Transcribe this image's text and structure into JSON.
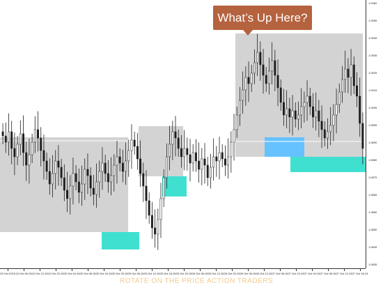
{
  "callout": {
    "text": "What’s Up Here?"
  },
  "watermark": {
    "text": "ROTATE ON THE PRICE ACTION TRADERS"
  },
  "colors": {
    "range_box": "#d3d3d3",
    "demand_zone": "#40e0d0",
    "blue_zone": "#66c2ff",
    "callout_bg": "#b5623f",
    "candle": "#1d1d1d",
    "callout_text": "#ffffff"
  },
  "price_axis": {
    "ticks": [
      "1.0960",
      "1.0955",
      "1.0945",
      "1.0935",
      "1.0925",
      "1.0915",
      "1.0905",
      "1.0895",
      "1.0890",
      "1.0880",
      "1.0875",
      "1.0865",
      "1.0860",
      "1.0850",
      "1.0845",
      "1.0835"
    ]
  },
  "time_axis": {
    "ticks": [
      "23 Oct 2015",
      "24 Oct 06:15",
      "24 Oct 12:15",
      "24 Oct 20:15",
      "25 Oct 04:15",
      "25 Oct 08:15",
      "25 Oct 16:15",
      "25 Oct 20:15",
      "25 Oct 06:15",
      "25 Oct 12:15",
      "25 Oct 16:15",
      "25 Oct 20:15",
      "26 Oct 06:15",
      "26 Oct 12:15",
      "26 Oct 20:15",
      "26 Oct 06:15",
      "26 Oct 12:15",
      "27 Oct 06:15",
      "27 Oct 10:15",
      "27 Oct 04:15",
      "27 Oct 08:15",
      "27 Oct 12:15",
      "27 Oct 16:15"
    ]
  },
  "price_series": {
    "closes": [
      1.0896,
      1.0893,
      1.0898,
      1.089,
      1.0886,
      1.0892,
      1.0897,
      1.0888,
      1.0882,
      1.0887,
      1.0893,
      1.0899,
      1.0895,
      1.0889,
      1.0884,
      1.0879,
      1.0873,
      1.0878,
      1.0884,
      1.0881,
      1.0876,
      1.087,
      1.0866,
      1.0872,
      1.0878,
      1.0874,
      1.0869,
      1.0873,
      1.088,
      1.0877,
      1.0871,
      1.0868,
      1.0874,
      1.0879,
      1.0883,
      1.0878,
      1.0874,
      1.0877,
      1.0882,
      1.0886,
      1.0883,
      1.0879,
      1.0884,
      1.0889,
      1.0894,
      1.0891,
      1.0885,
      1.0878,
      1.0872,
      1.0865,
      1.0858,
      1.0852,
      1.0849,
      1.0856,
      1.0866,
      1.0876,
      1.0886,
      1.0892,
      1.0898,
      1.0895,
      1.089,
      1.0886,
      1.089,
      1.0887,
      1.0883,
      1.0888,
      1.0884,
      1.088,
      1.0885,
      1.0882,
      1.0876,
      1.0881,
      1.0886,
      1.0884,
      1.0888,
      1.0885,
      1.0882,
      1.0886,
      1.0893,
      1.0899,
      1.0906,
      1.0913,
      1.0918,
      1.0924,
      1.0921,
      1.0926,
      1.0931,
      1.0936,
      1.093,
      1.0925,
      1.0921,
      1.0927,
      1.0932,
      1.0925,
      1.0919,
      1.0912,
      1.0906,
      1.0909,
      1.0905,
      1.0908,
      1.0904,
      1.0906,
      1.091,
      1.0912,
      1.0915,
      1.091,
      1.0905,
      1.0908,
      1.0903,
      1.0899,
      1.0895,
      1.0898,
      1.0901,
      1.0906,
      1.0911,
      1.0917,
      1.0923,
      1.0928,
      1.0924,
      1.093,
      1.092,
      1.0915,
      1.0902,
      1.089
    ]
  }
}
